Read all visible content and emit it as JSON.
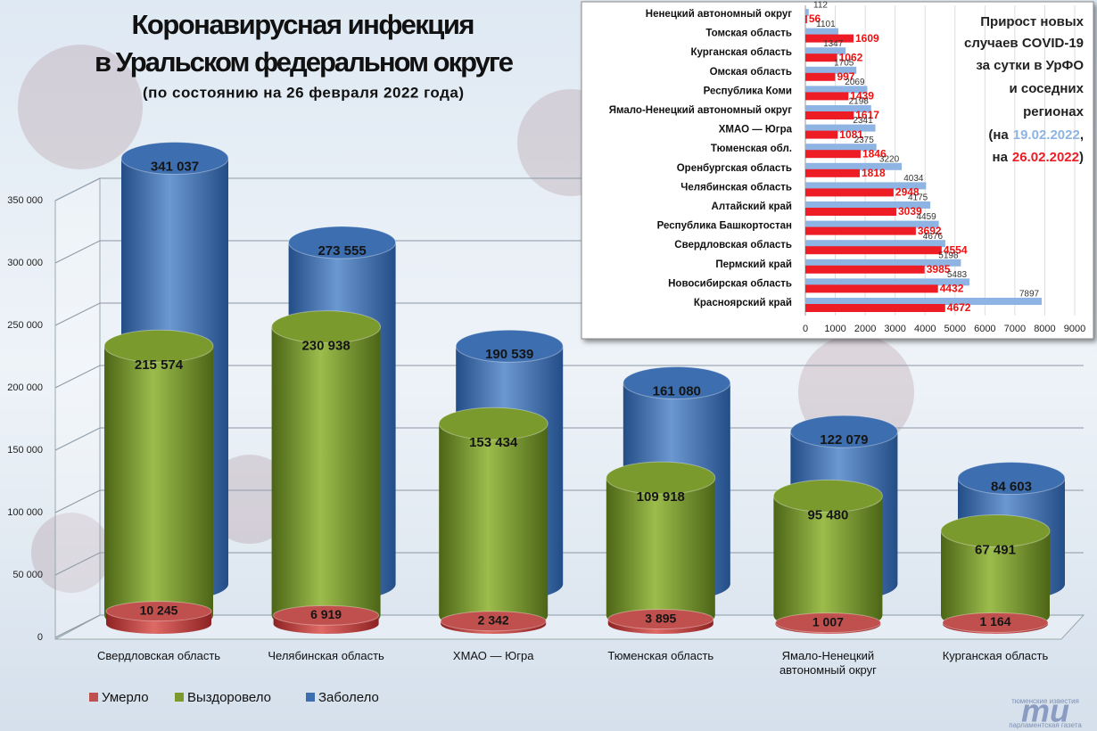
{
  "chart_data": [
    {
      "type": "cylinder",
      "title_lines": [
        "Коронавирусная инфекция",
        "в Уральском федеральном округе"
      ],
      "subtitle": "(по состоянию на 26 февраля 2022 года)",
      "categories": [
        "Свердловская область",
        "Челябинская область",
        "ХМАО — Югра",
        "Тюменская область",
        "Ямало-Ненецкий автономный округ",
        "Курганская область"
      ],
      "series": [
        {
          "name": "Умерло",
          "color": "#c0504d",
          "values": [
            10245,
            6919,
            2342,
            3895,
            1007,
            1164
          ],
          "value_labels": [
            "10 245",
            "6 919",
            "2 342",
            "3 895",
            "1 007",
            "1 164"
          ]
        },
        {
          "name": "Выздоровело",
          "color": "#7a9a2e",
          "values": [
            215574,
            230938,
            153434,
            109918,
            95480,
            67491
          ],
          "value_labels": [
            "215 574",
            "230 938",
            "153 434",
            "109 918",
            "95 480",
            "67 491"
          ]
        },
        {
          "name": "Заболело",
          "color": "#3d6eb0",
          "values": [
            341037,
            273555,
            190539,
            161080,
            122079,
            84603
          ],
          "value_labels": [
            "341 037",
            "273 555",
            "190 539",
            "161 080",
            "122 079",
            "84 603"
          ]
        }
      ],
      "ylim": [
        0,
        350000
      ],
      "yticks": [
        0,
        {
          "value": 50000,
          "label": "50 000"
        },
        {
          "value": 100000,
          "label": "100 000"
        },
        {
          "value": 150000,
          "label": "150 000"
        },
        {
          "value": 200000,
          "label": "200 000"
        },
        {
          "value": 250000,
          "label": "250 000"
        },
        {
          "value": 300000,
          "label": "300 000"
        },
        {
          "value": 350000,
          "label": "350 000"
        }
      ],
      "grid": true,
      "legend": "bottom-left"
    },
    {
      "type": "hbar",
      "title_lines": [
        "Прирост новых",
        "случаев COVID-19",
        "за сутки в УрФО",
        "и соседних",
        "регионах"
      ],
      "note_parts": [
        "(на",
        ",",
        "на",
        ")"
      ],
      "categories": [
        "Ненецкий автономный округ",
        "Томская область",
        "Курганская область",
        "Омская область",
        "Республика Коми",
        "Ямало-Ненецкий автономный округ",
        "ХМАО — Югра",
        "Тюменская обл.",
        "Оренбургская область",
        "Челябинская область",
        "Алтайский край",
        "Республика Башкортостан",
        "Свердловская область",
        "Пермский край",
        "Новосибирская область",
        "Красноярский край"
      ],
      "series": [
        {
          "name": "19.02.2022",
          "color": "#8eb4e3",
          "values": [
            112,
            1101,
            1347,
            1705,
            2069,
            2198,
            2341,
            2375,
            3220,
            4034,
            4175,
            4459,
            4676,
            5198,
            5483,
            7897
          ]
        },
        {
          "name": "26.02.2022",
          "color": "#ee1c25",
          "values": [
            56,
            1609,
            1062,
            997,
            1439,
            1617,
            1081,
            1846,
            1818,
            2948,
            3039,
            3692,
            4554,
            3985,
            4432,
            4672
          ]
        }
      ],
      "xlim": [
        0,
        9000
      ],
      "xticks": [
        0,
        1000,
        2000,
        3000,
        4000,
        5000,
        6000,
        7000,
        8000,
        9000
      ],
      "grid": true
    }
  ],
  "logo": {
    "top": "тюменские известия",
    "mark": "ти",
    "bottom": "парламентская газета"
  }
}
